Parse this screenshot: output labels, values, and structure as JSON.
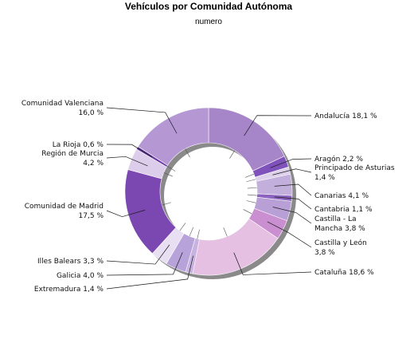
{
  "chart_data": {
    "type": "pie",
    "variant": "donut",
    "title": "Vehículos por Comunidad Autónoma",
    "subtitle": "numero",
    "slices": [
      {
        "label": "Andalucía",
        "value": 18.1,
        "text": "Andalucía 18,1 %",
        "color": "#a685c9"
      },
      {
        "label": "Aragón",
        "value": 2.2,
        "text": "Aragón 2,2 %",
        "color": "#7e52ba"
      },
      {
        "label": "Principado de Asturias",
        "value": 1.4,
        "text": "Principado de Asturias 1,4 %",
        "color": "#ddd0ea"
      },
      {
        "label": "Canarias",
        "value": 4.1,
        "text": "Canarias 4,1 %",
        "color": "#c3afdc"
      },
      {
        "label": "Cantabria",
        "value": 1.1,
        "text": "Cantabria 1,1 %",
        "color": "#8b62be"
      },
      {
        "label": "Castilla - La Mancha",
        "value": 3.8,
        "text": "Castilla - La Mancha 3,8 %",
        "color": "#b89fd6"
      },
      {
        "label": "Castilla y León",
        "value": 3.8,
        "text": "Castilla y León 3,8 %",
        "color": "#c98fd0"
      },
      {
        "label": "Cataluña",
        "value": 18.6,
        "text": "Cataluña 18,6 %",
        "color": "#e5c0e3"
      },
      {
        "label": "Extremadura",
        "value": 1.4,
        "text": "Extremadura 1,4 %",
        "color": "#c7b2e0"
      },
      {
        "label": "Galicia",
        "value": 4.0,
        "text": "Galicia 4,0 %",
        "color": "#b8a2da"
      },
      {
        "label": "Illes Balears",
        "value": 3.3,
        "text": "Illes Balears 3,3 %",
        "color": "#e8dff3"
      },
      {
        "label": "Comunidad de Madrid",
        "value": 17.5,
        "text": "Comunidad de Madrid 17,5 %",
        "color": "#7b48b2"
      },
      {
        "label": "Región de Murcia",
        "value": 4.2,
        "text": "Región de Murcia 4,2 %",
        "color": "#dccdeb"
      },
      {
        "label": "La Rioja",
        "value": 0.6,
        "text": "La Rioja 0,6 %",
        "color": "#6a3aa6"
      },
      {
        "label": "Comunidad Valenciana",
        "value": 16.0,
        "text": "Comunidad Valenciana 16,0 %",
        "color": "#b497d3"
      }
    ]
  }
}
